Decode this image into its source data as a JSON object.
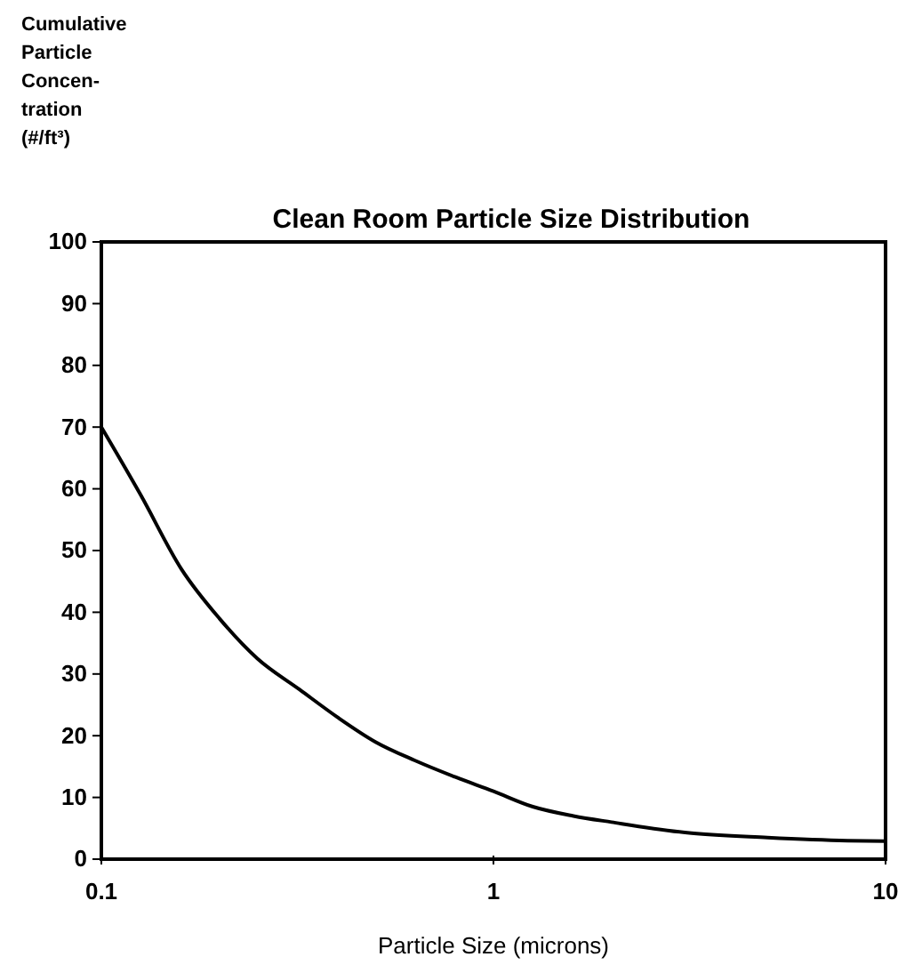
{
  "chart_data": {
    "type": "line",
    "title": "Clean Room Particle Size Distribution",
    "xlabel": "Particle Size (microns)",
    "ylabel": "Cumulative\nParticle\nConcen-\ntration\n(#/ft³)",
    "x": [
      0.1,
      0.126,
      0.16,
      0.2,
      0.25,
      0.32,
      0.4,
      0.5,
      0.63,
      0.8,
      1,
      1.26,
      1.6,
      2,
      3.2,
      5,
      8,
      10
    ],
    "series": [
      {
        "color": "#000000",
        "values": [
          70,
          59,
          47,
          39,
          32.5,
          27.5,
          23,
          19,
          16,
          13.3,
          11,
          8.5,
          7,
          6,
          4.2,
          3.5,
          3,
          2.9
        ]
      }
    ],
    "log": "x",
    "xlim": [
      0.1,
      10
    ],
    "xticks": [
      0.1,
      1,
      10
    ],
    "ylim": [
      0,
      100
    ],
    "yticks": [
      0,
      10,
      20,
      30,
      40,
      50,
      60,
      70,
      80,
      90,
      100
    ],
    "grid": false,
    "marker": "none",
    "line_style": "solid"
  }
}
